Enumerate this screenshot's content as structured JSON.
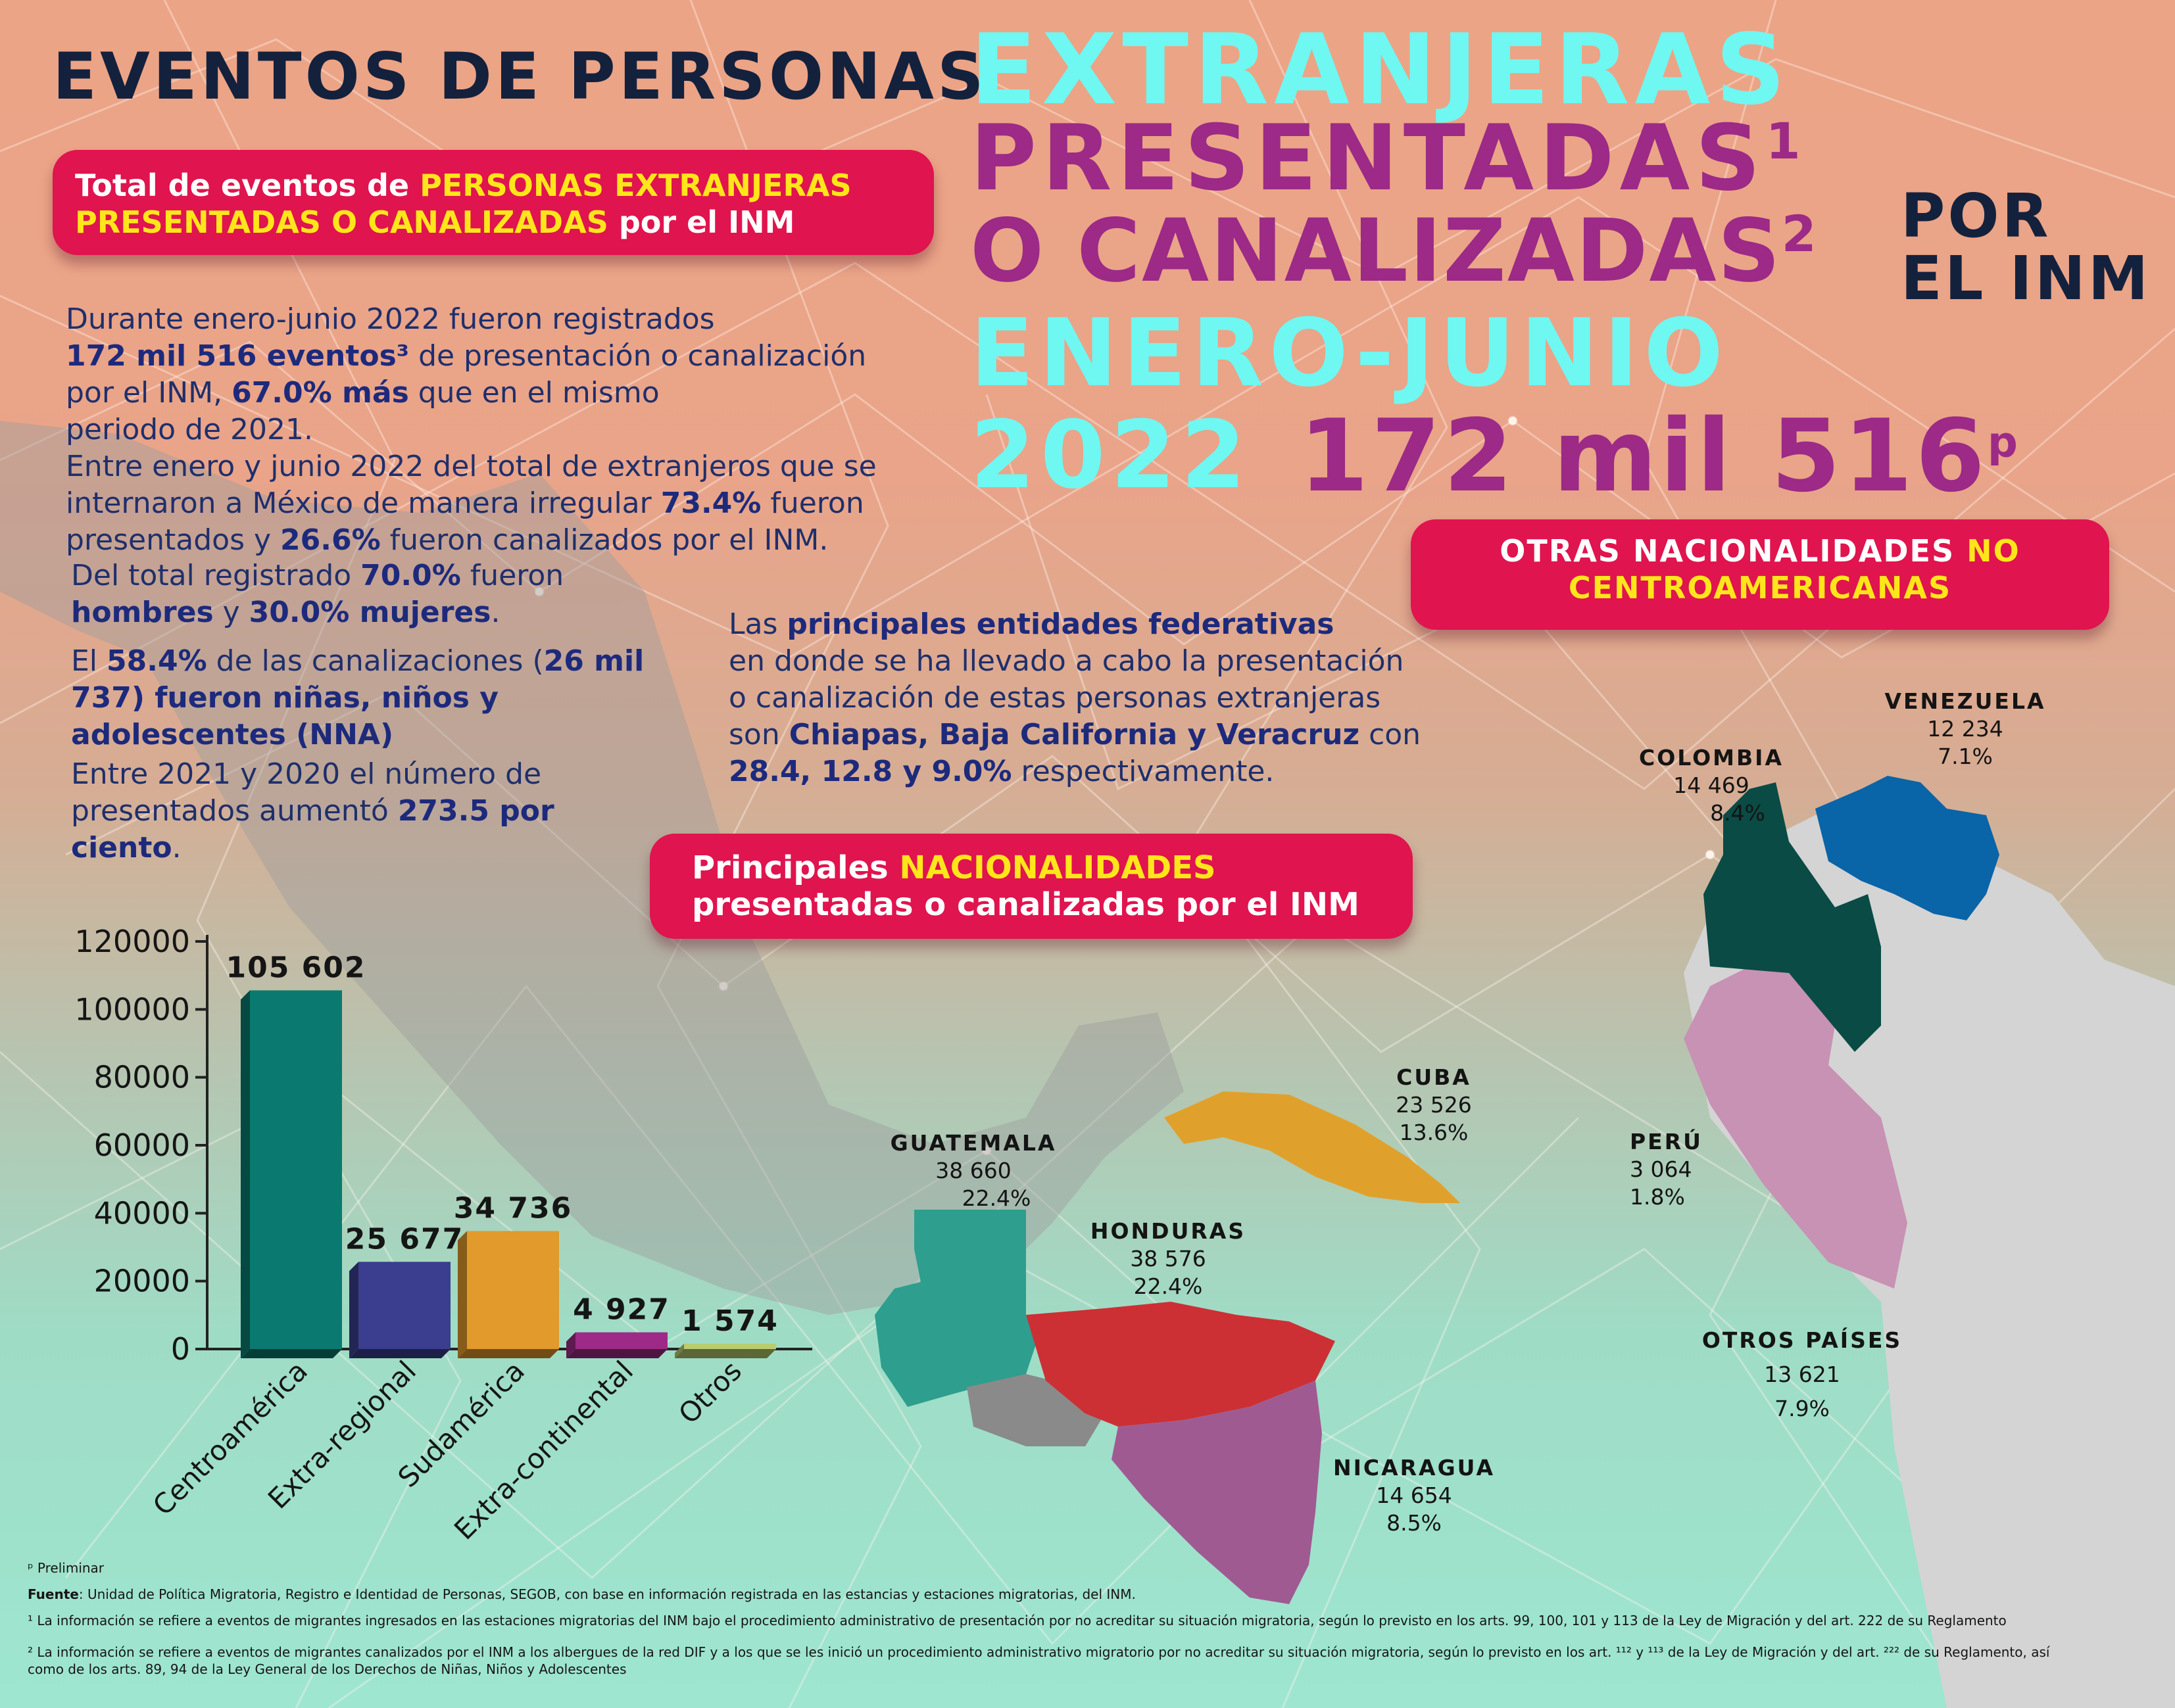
{
  "title": {
    "line1": "EVENTOS DE PERSONAS",
    "line2": "EXTRANJERAS",
    "line3": "PRESENTADAS",
    "line3_sup": "1",
    "line4": "O CANALIZADAS",
    "line4_sup": "2",
    "por": "POR",
    "el_inm": "EL INM",
    "period1": "ENERO-JUNIO",
    "period2": "2022",
    "total": "172 mil 516",
    "total_sup": "p"
  },
  "total_pill": {
    "part1": "Total de eventos de ",
    "hl1": "PERSONAS EXTRANJERAS",
    "hl2": "PRESENTADAS O CANALIZADAS",
    "part2": " por el ",
    "inm": "INM"
  },
  "paragraphs": {
    "p1_a": "Durante enero-junio 2022 fueron registrados",
    "p1_b": "172 mil 516 eventos³",
    "p1_c": " de presentación o canalización",
    "p1_d": "por el  ",
    "p1_e": "INM",
    "p1_f": ", ",
    "p1_g": "67.0% más",
    "p1_h": " que en el mismo",
    "p1_i": "periodo de 2021.",
    "p2_a": "Entre enero y junio 2022 del total de extranjeros que se",
    "p2_b": "internaron a México de manera irregular ",
    "p2_c": "73.4%",
    "p2_d": " fueron",
    "p2_e": "presentados y ",
    "p2_f": "26.6%",
    "p2_g": " fueron canalizados por el ",
    "p2_h": "INM",
    "p2_i": ".",
    "p3_a": "Del total registrado ",
    "p3_b": "70.0%",
    "p3_c": " fueron",
    "p3_d": "hombres",
    "p3_e": " y ",
    "p3_f": "30.0% mujeres",
    "p3_g": ".",
    "p4_a": "El ",
    "p4_b": "58.4%",
    "p4_c": " de las canalizaciones (",
    "p4_d": "26 mil",
    "p4_e": "737) fueron niñas, niños y",
    "p4_f": "adolescentes (NNA)",
    "p5_a": "Entre 2021 y 2020 el número de",
    "p5_b": "presentados aumentó ",
    "p5_c": "273.5 por",
    "p5_d": "ciento",
    "p5_e": ".",
    "p6_a": "Las ",
    "p6_b": "principales entidades federativas",
    "p6_c": "en donde se ha llevado a cabo la presentación",
    "p6_d": "o canalización de estas personas extranjeras",
    "p6_e": "son ",
    "p6_f": "Chiapas, Baja California y Veracruz",
    "p6_g": " con",
    "p6_h": "28.4, 12.8 y 9.0%",
    "p6_i": " respectivamente."
  },
  "nat_pill": {
    "part1": "Principales ",
    "hl": "NACIONALIDADES",
    "part2": "presentadas o canalizadas por el ",
    "inm": "INM"
  },
  "otras_pill": {
    "part1": "OTRAS NACIONALIDADES ",
    "hl1": "NO",
    "hl2": "CENTROAMERICANAS"
  },
  "map_labels": [
    {
      "name": "VENEZUELA",
      "value": "12 234",
      "pct": "7.1%"
    },
    {
      "name": "COLOMBIA",
      "value": "14 469",
      "pct": "8.4%"
    },
    {
      "name": "CUBA",
      "value": "23 526",
      "pct": "13.6%"
    },
    {
      "name": "GUATEMALA",
      "value": "38 660",
      "pct": "22.4%"
    },
    {
      "name": "HONDURAS",
      "value": "38 576",
      "pct": "22.4%"
    },
    {
      "name": "PERÚ",
      "value": "3 064",
      "pct": "1.8%"
    },
    {
      "name": "OTROS PAÍSES",
      "value": "13 621",
      "pct": "7.9%"
    },
    {
      "name": "NICARAGUA",
      "value": "14 654",
      "pct": "8.5%"
    }
  ],
  "map_colors": {
    "guatemala": "#2e9e8e",
    "honduras": "#cc3034",
    "nicaragua": "#a05a92",
    "el_salvador": "#8a8a8a",
    "cuba": "#e0a12c",
    "colombia": "#0a4b45",
    "venezuela": "#0a64a8",
    "peru": "#c792b4",
    "others": "#d4d4d4"
  },
  "chart_data": {
    "type": "bar",
    "categories": [
      "Centroamérica",
      "Extra-regional",
      "Sudamérica",
      "Extra-continental",
      "Otros"
    ],
    "values": [
      105602,
      25677,
      34736,
      4927,
      1574
    ],
    "value_labels": [
      "105 602",
      "25 677",
      "34 736",
      "4 927",
      "1 574"
    ],
    "colors": [
      "#0a7a70",
      "#3b3d8e",
      "#e19a2b",
      "#9c2a86",
      "#b9cc6e"
    ],
    "yticks": [
      "120000",
      "100000",
      "80000",
      "60000",
      "40000",
      "20000",
      "0"
    ],
    "ylim": [
      0,
      120000
    ],
    "title": "",
    "xlabel": "",
    "ylabel": ""
  },
  "footnotes": {
    "p": "ᵖ Preliminar",
    "fuente_label": "Fuente",
    "fuente": ": Unidad de Política Migratoria, Registro e Identidad de Personas, SEGOB, con base en información registrada en las estancias y estaciones migratorias, del INM.",
    "n1": "¹ La información se refiere a eventos de migrantes ingresados en las estaciones migratorias del INM bajo el procedimiento administrativo de presentación por no acreditar su situación migratoria, según lo previsto en los arts. 99, 100, 101 y 113 de la Ley de Migración y del art. 222 de su Reglamento",
    "n2a": "² La información se refiere a eventos de migrantes canalizados por el INM a los albergues de la red DIF y a los que se les inició un procedimiento administrativo migratorio por no acreditar su situación migratoria, según lo previsto en los art. ¹¹² y ¹¹³ de la Ley de Migración y del art. ²²² de su Reglamento, así",
    "n2b": "como de los arts. 89, 94 de la Ley General de los Derechos de Niñas, Niños y Adolescentes"
  }
}
